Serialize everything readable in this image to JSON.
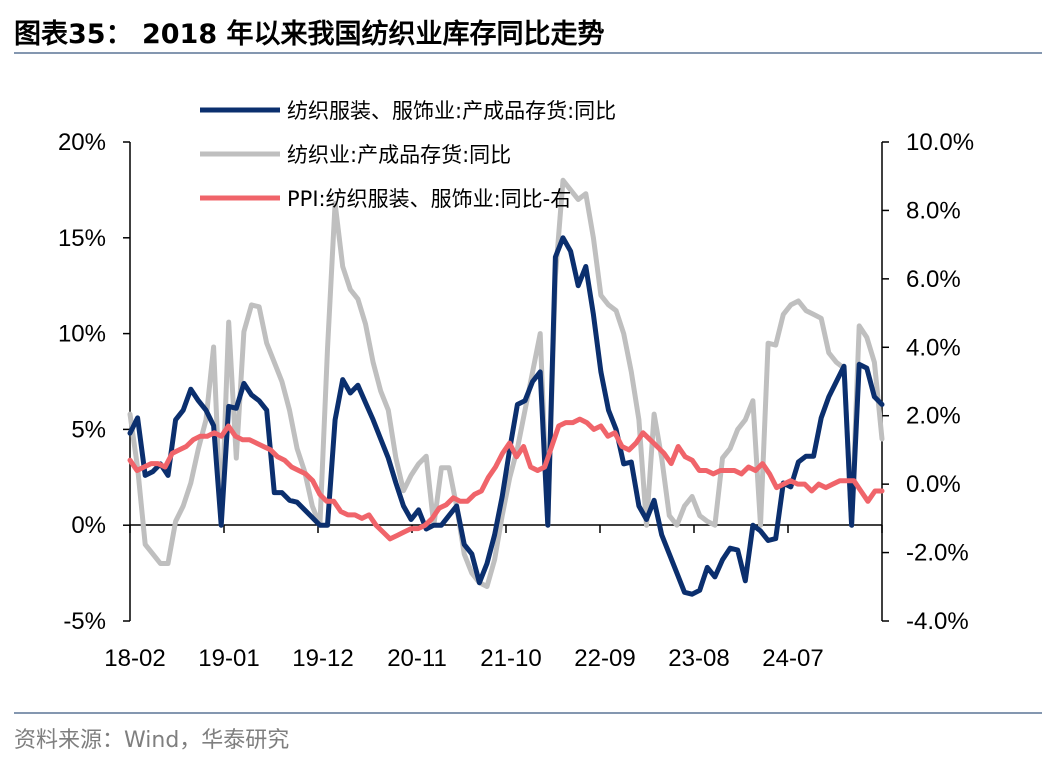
{
  "title": "图表35： 2018 年以来我国纺织业库存同比走势",
  "source": "资料来源：Wind，华泰研究",
  "chart_data": {
    "type": "line",
    "x_tick_labels": [
      "18-02",
      "19-01",
      "19-12",
      "20-11",
      "21-10",
      "22-09",
      "23-08",
      "24-07"
    ],
    "y_left": {
      "ticks": [
        "20%",
        "15%",
        "10%",
        "5%",
        "0%",
        "-5%"
      ],
      "range": [
        -5,
        20
      ]
    },
    "y_right": {
      "ticks": [
        "10.0%",
        "8.0%",
        "6.0%",
        "4.0%",
        "2.0%",
        "0.0%",
        "-2.0%",
        "-4.0%"
      ],
      "range": [
        -4,
        10
      ]
    },
    "legend": [
      "纺织服装、服饰业:产成品存货:同比",
      "纺织业:产成品存货:同比",
      "PPI:纺织服装、服饰业:同比-右"
    ],
    "series": [
      {
        "name": "纺织服装、服饰业:产成品存货:同比",
        "axis": "left",
        "color": "#0b2f6e",
        "values": [
          4.8,
          5.6,
          2.6,
          2.8,
          3.2,
          2.6,
          5.5,
          6.0,
          7.1,
          6.5,
          6.0,
          5.2,
          0.0,
          6.2,
          6.1,
          7.4,
          6.8,
          6.5,
          6.0,
          1.7,
          1.7,
          1.3,
          1.2,
          0.8,
          0.4,
          0.0,
          0.0,
          5.5,
          7.6,
          6.9,
          7.3,
          6.4,
          5.5,
          4.5,
          3.5,
          2.2,
          1.0,
          0.3,
          0.8,
          -0.2,
          0.0,
          0.0,
          0.5,
          1.0,
          -1.0,
          -1.5,
          -3.0,
          -2.0,
          -0.5,
          1.5,
          4.0,
          6.3,
          6.5,
          7.5,
          8.0,
          0.0,
          14.0,
          15.0,
          14.3,
          12.5,
          13.5,
          11.0,
          8.0,
          6.0,
          5.0,
          3.2,
          3.3,
          1.0,
          0.3,
          1.3,
          -0.5,
          -1.5,
          -2.5,
          -3.5,
          -3.6,
          -3.4,
          -2.2,
          -2.7,
          -1.8,
          -1.2,
          -1.3,
          -2.9,
          0.0,
          -0.3,
          -0.8,
          -0.7,
          2.2,
          2.0,
          3.3,
          3.6,
          3.6,
          5.6,
          6.7,
          7.5,
          8.3,
          0.0,
          8.4,
          8.2,
          6.7,
          6.3
        ]
      },
      {
        "name": "纺织业:产成品存货:同比",
        "axis": "left",
        "color": "#bfbfbf",
        "values": [
          5.8,
          3.0,
          -1.0,
          -1.5,
          -2.0,
          -2.0,
          0.2,
          1.0,
          2.2,
          4.0,
          5.5,
          9.3,
          0.0,
          10.6,
          3.5,
          10.1,
          11.5,
          11.4,
          9.5,
          8.5,
          7.5,
          6.0,
          4.0,
          2.8,
          1.0,
          0.0,
          9.2,
          16.8,
          13.5,
          12.3,
          11.8,
          10.5,
          8.5,
          7.0,
          6.0,
          3.5,
          1.8,
          2.6,
          3.2,
          3.6,
          0.0,
          3.0,
          3.0,
          1.0,
          -1.5,
          -2.5,
          -3.0,
          -3.2,
          -1.8,
          0.5,
          2.5,
          4.0,
          6.0,
          8.0,
          10.0,
          0.0,
          13.0,
          18.0,
          17.5,
          17.0,
          17.3,
          15.0,
          12.0,
          11.5,
          11.2,
          10.0,
          8.0,
          5.5,
          0.0,
          5.8,
          3.5,
          0.5,
          0.0,
          1.0,
          1.5,
          0.5,
          0.2,
          0.0,
          3.5,
          4.0,
          5.0,
          5.5,
          6.5,
          0.0,
          9.5,
          9.4,
          11.0,
          11.5,
          11.7,
          11.2,
          11.0,
          10.8,
          9.0,
          8.5,
          8.2,
          0.0,
          10.4,
          9.8,
          8.5,
          4.5
        ]
      },
      {
        "name": "PPI:纺织服装、服饰业:同比-右",
        "axis": "right",
        "color": "#f0646a",
        "values": [
          0.7,
          0.4,
          0.5,
          0.6,
          0.6,
          0.5,
          0.9,
          1.0,
          1.1,
          1.3,
          1.4,
          1.4,
          1.5,
          1.4,
          1.7,
          1.4,
          1.3,
          1.3,
          1.2,
          1.1,
          1.0,
          0.8,
          0.7,
          0.5,
          0.4,
          0.3,
          0.1,
          -0.3,
          -0.5,
          -0.5,
          -0.8,
          -0.9,
          -0.9,
          -1.0,
          -0.9,
          -1.2,
          -1.4,
          -1.6,
          -1.5,
          -1.4,
          -1.3,
          -1.3,
          -1.2,
          -1.0,
          -0.7,
          -0.6,
          -0.4,
          -0.5,
          -0.5,
          -0.3,
          -0.2,
          0.2,
          0.5,
          0.9,
          1.2,
          0.8,
          1.1,
          0.5,
          0.4,
          0.5,
          1.1,
          1.7,
          1.8,
          1.8,
          1.9,
          1.8,
          1.6,
          1.7,
          1.4,
          1.5,
          1.1,
          1.0,
          1.2,
          1.5,
          1.3,
          1.1,
          0.9,
          0.6,
          1.1,
          0.8,
          0.7,
          0.4,
          0.4,
          0.3,
          0.4,
          0.4,
          0.4,
          0.3,
          0.5,
          0.4,
          0.6,
          0.3,
          -0.1,
          0.0,
          0.1,
          0.0,
          0.0,
          -0.2,
          0.0,
          -0.1,
          0.0,
          0.1,
          0.1,
          0.1,
          -0.2,
          -0.5,
          -0.2,
          -0.2
        ]
      }
    ]
  }
}
